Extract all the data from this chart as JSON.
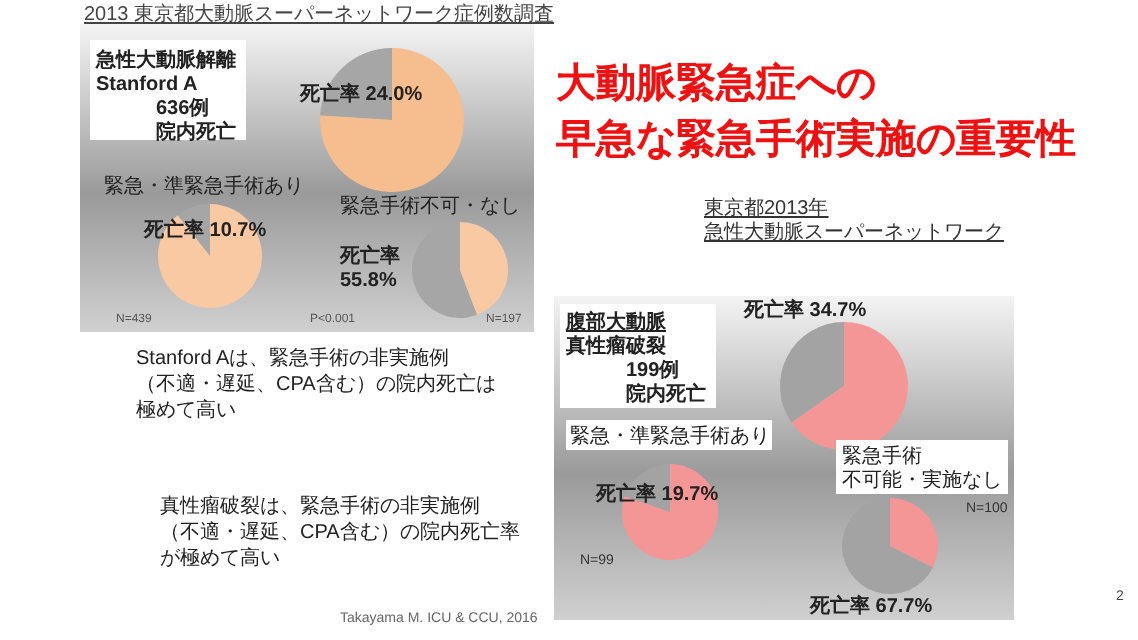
{
  "chart_data": [
    {
      "type": "pie",
      "title": "急性大動脈解離Stanford A636例院内死亡",
      "categories": [
        null,
        null
      ],
      "values": [
        24.0,
        76.0
      ],
      "colors": [
        "#a6a6a6",
        "#f6bd8e"
      ],
      "value_labels": [
        "死亡率 24.0%",
        null
      ],
      "annotations": [
        "2013 東京都大動脈スーパーネットワーク症例数調査",
        "大動脈緊急症への早急な緊急手術実施の重要性",
        "東京都2013年急性大動脈スーパーネットワーク",
        "P<0.001",
        "Stanford Aは、緊急手術の非実施例（不適・遅延、CPA含む）の院内死亡は極めて高い",
        "Takayama M. ICU & CCU, 2016",
        "2"
      ]
    },
    {
      "type": "pie",
      "title": "緊急・準緊急手術あり",
      "categories": [
        null,
        null
      ],
      "values": [
        10.7,
        89.3
      ],
      "colors": [
        "#a6a6a6",
        "#f8c9a3"
      ],
      "value_labels": [
        "死亡率 10.7%",
        null
      ],
      "annotations": [
        "N=439"
      ]
    },
    {
      "type": "pie",
      "title": "緊急手術不可・なし",
      "categories": [
        null,
        null
      ],
      "values": [
        55.8,
        44.2
      ],
      "colors": [
        "#a6a6a6",
        "#f8c9a3"
      ],
      "value_labels": [
        "死亡率55.8%",
        null
      ],
      "annotations": [
        "N=197"
      ]
    },
    {
      "type": "pie",
      "title": "腹部大動脈真性瘤破裂199例院内死亡",
      "categories": [
        null,
        null
      ],
      "values": [
        34.7,
        65.3
      ],
      "colors": [
        "#a3a3a3",
        "#f59696"
      ],
      "value_labels": [
        "死亡率 34.7%",
        null
      ],
      "annotations": [
        "真性瘤破裂は、緊急手術の非実施例（不適・遅延、CPA含む）の院内死亡率が極めて高い"
      ]
    },
    {
      "type": "pie",
      "title": "緊急・準緊急手術あり",
      "categories": [
        null,
        null
      ],
      "values": [
        19.7,
        80.3
      ],
      "colors": [
        "#a3a3a3",
        "#f59696"
      ],
      "value_labels": [
        "死亡率 19.7%",
        null
      ],
      "annotations": [
        "N=99"
      ]
    },
    {
      "type": "pie",
      "title": "緊急手術不可能・実施なし",
      "categories": [
        null,
        null
      ],
      "values": [
        67.7,
        32.3
      ],
      "colors": [
        "#a3a3a3",
        "#f59696"
      ],
      "value_labels": [
        "死亡率 67.7%",
        null
      ],
      "annotations": [
        "N=100"
      ]
    }
  ]
}
